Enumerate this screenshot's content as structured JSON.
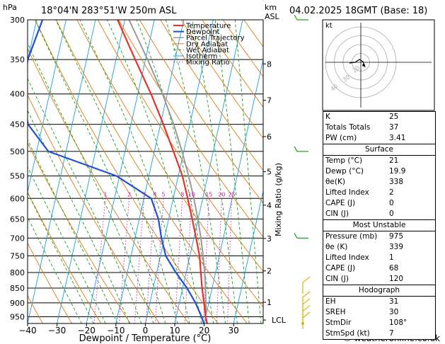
{
  "header": {
    "location": "18°04'N  283°51'W  250m  ASL",
    "datetime": "04.02.2025  18GMT  (Base: 18)",
    "left_unit": "hPa",
    "right_unit_top": "km",
    "right_unit_bottom": "ASL"
  },
  "footer": {
    "credit": "© weatheronline.co.uk"
  },
  "chart_data": {
    "type": "skew-t",
    "xlabel": "Dewpoint / Temperature (°C)",
    "ylabel_right": "Mixing Ratio (g/kg)",
    "xlim": [
      -40,
      40
    ],
    "ylim": [
      300,
      975
    ],
    "x_ticks": [
      -40,
      -30,
      -20,
      -10,
      0,
      10,
      20,
      30
    ],
    "pressure_ticks": [
      300,
      350,
      400,
      450,
      500,
      550,
      600,
      650,
      700,
      750,
      800,
      850,
      900,
      950
    ],
    "km_ticks": [
      {
        "label": "8",
        "p": 356
      },
      {
        "label": "7",
        "p": 410
      },
      {
        "label": "6",
        "p": 472
      },
      {
        "label": "5",
        "p": 541
      },
      {
        "label": "4",
        "p": 616
      },
      {
        "label": "3",
        "p": 701
      },
      {
        "label": "2",
        "p": 795
      },
      {
        "label": "1",
        "p": 898
      },
      {
        "label": "LCL",
        "p": 962
      }
    ],
    "mixing_ratio_labels": [
      "1",
      "2",
      "3",
      "4",
      "5",
      "8",
      "10",
      "15",
      "20",
      "25"
    ],
    "mixing_ratio_values": [
      1,
      2,
      3,
      4,
      5,
      8,
      10,
      15,
      20,
      25
    ],
    "legend": [
      "Temperature",
      "Dewpoint",
      "Parcel Trajectory",
      "Dry Adiabat",
      "Wet Adiabat",
      "Isotherm",
      "Mixing Ratio"
    ],
    "colors": {
      "temperature": "#e8312b",
      "dewpoint": "#1f4fd6",
      "parcel": "#999999",
      "dry_adiabat": "#e07a10",
      "wet_adiabat": "#1aa01a",
      "isotherm": "#14a0e0",
      "mixing_ratio": "#cc1fb8"
    },
    "temperature": [
      [
        975,
        21
      ],
      [
        950,
        20
      ],
      [
        900,
        18.4
      ],
      [
        850,
        16.6
      ],
      [
        800,
        15
      ],
      [
        750,
        13.3
      ],
      [
        700,
        10.8
      ],
      [
        650,
        8
      ],
      [
        600,
        4.9
      ],
      [
        550,
        1.4
      ],
      [
        500,
        -3.5
      ],
      [
        450,
        -9
      ],
      [
        400,
        -15.5
      ],
      [
        350,
        -23.5
      ],
      [
        300,
        -32.5
      ]
    ],
    "dewpoint": [
      [
        975,
        19.9
      ],
      [
        950,
        18.6
      ],
      [
        900,
        15.5
      ],
      [
        850,
        11.5
      ],
      [
        800,
        6.5
      ],
      [
        750,
        1.8
      ],
      [
        700,
        -1
      ],
      [
        650,
        -3.5
      ],
      [
        600,
        -7.5
      ],
      [
        550,
        -21
      ],
      [
        500,
        -46
      ],
      [
        450,
        -55
      ],
      [
        400,
        -59
      ],
      [
        350,
        -60
      ],
      [
        300,
        -58
      ]
    ],
    "parcel": [
      [
        975,
        21
      ],
      [
        962,
        20.3
      ],
      [
        900,
        19
      ],
      [
        850,
        17.8
      ],
      [
        800,
        16.3
      ],
      [
        750,
        14.5
      ],
      [
        700,
        12.4
      ],
      [
        650,
        9.9
      ],
      [
        600,
        7
      ],
      [
        550,
        3.5
      ],
      [
        500,
        -0.6
      ],
      [
        450,
        -5.5
      ],
      [
        400,
        -11.6
      ],
      [
        350,
        -19.3
      ],
      [
        300,
        -28.6
      ]
    ]
  },
  "wind_profile": {
    "levels_hpa": [
      300,
      500,
      700,
      850,
      900,
      925,
      950,
      975
    ],
    "colors": {
      "upper": "#1aa01a",
      "lower": "#d6b800"
    }
  },
  "hodograph": {
    "label": "kt",
    "ring_labels": [
      "40",
      "30",
      "20"
    ]
  },
  "indices": {
    "basic": [
      {
        "name": "K",
        "value": "25"
      },
      {
        "name": "Totals Totals",
        "value": "37"
      },
      {
        "name": "PW (cm)",
        "value": "3.41"
      }
    ],
    "surface": {
      "title": "Surface",
      "rows": [
        {
          "name": "Temp (°C)",
          "value": "21"
        },
        {
          "name": "Dewp (°C)",
          "value": "19.9"
        },
        {
          "name": "θe(K)",
          "value": "338"
        },
        {
          "name": "Lifted Index",
          "value": "2"
        },
        {
          "name": "CAPE (J)",
          "value": "0"
        },
        {
          "name": "CIN (J)",
          "value": "0"
        }
      ]
    },
    "most_unstable": {
      "title": "Most Unstable",
      "rows": [
        {
          "name": "Pressure (mb)",
          "value": "975"
        },
        {
          "name": "θe (K)",
          "value": "339"
        },
        {
          "name": "Lifted Index",
          "value": "1"
        },
        {
          "name": "CAPE (J)",
          "value": "68"
        },
        {
          "name": "CIN (J)",
          "value": "120"
        }
      ]
    },
    "hodograph": {
      "title": "Hodograph",
      "rows": [
        {
          "name": "EH",
          "value": "31"
        },
        {
          "name": "SREH",
          "value": "30"
        },
        {
          "name": "StmDir",
          "value": "108°"
        },
        {
          "name": "StmSpd (kt)",
          "value": "7"
        }
      ]
    }
  }
}
